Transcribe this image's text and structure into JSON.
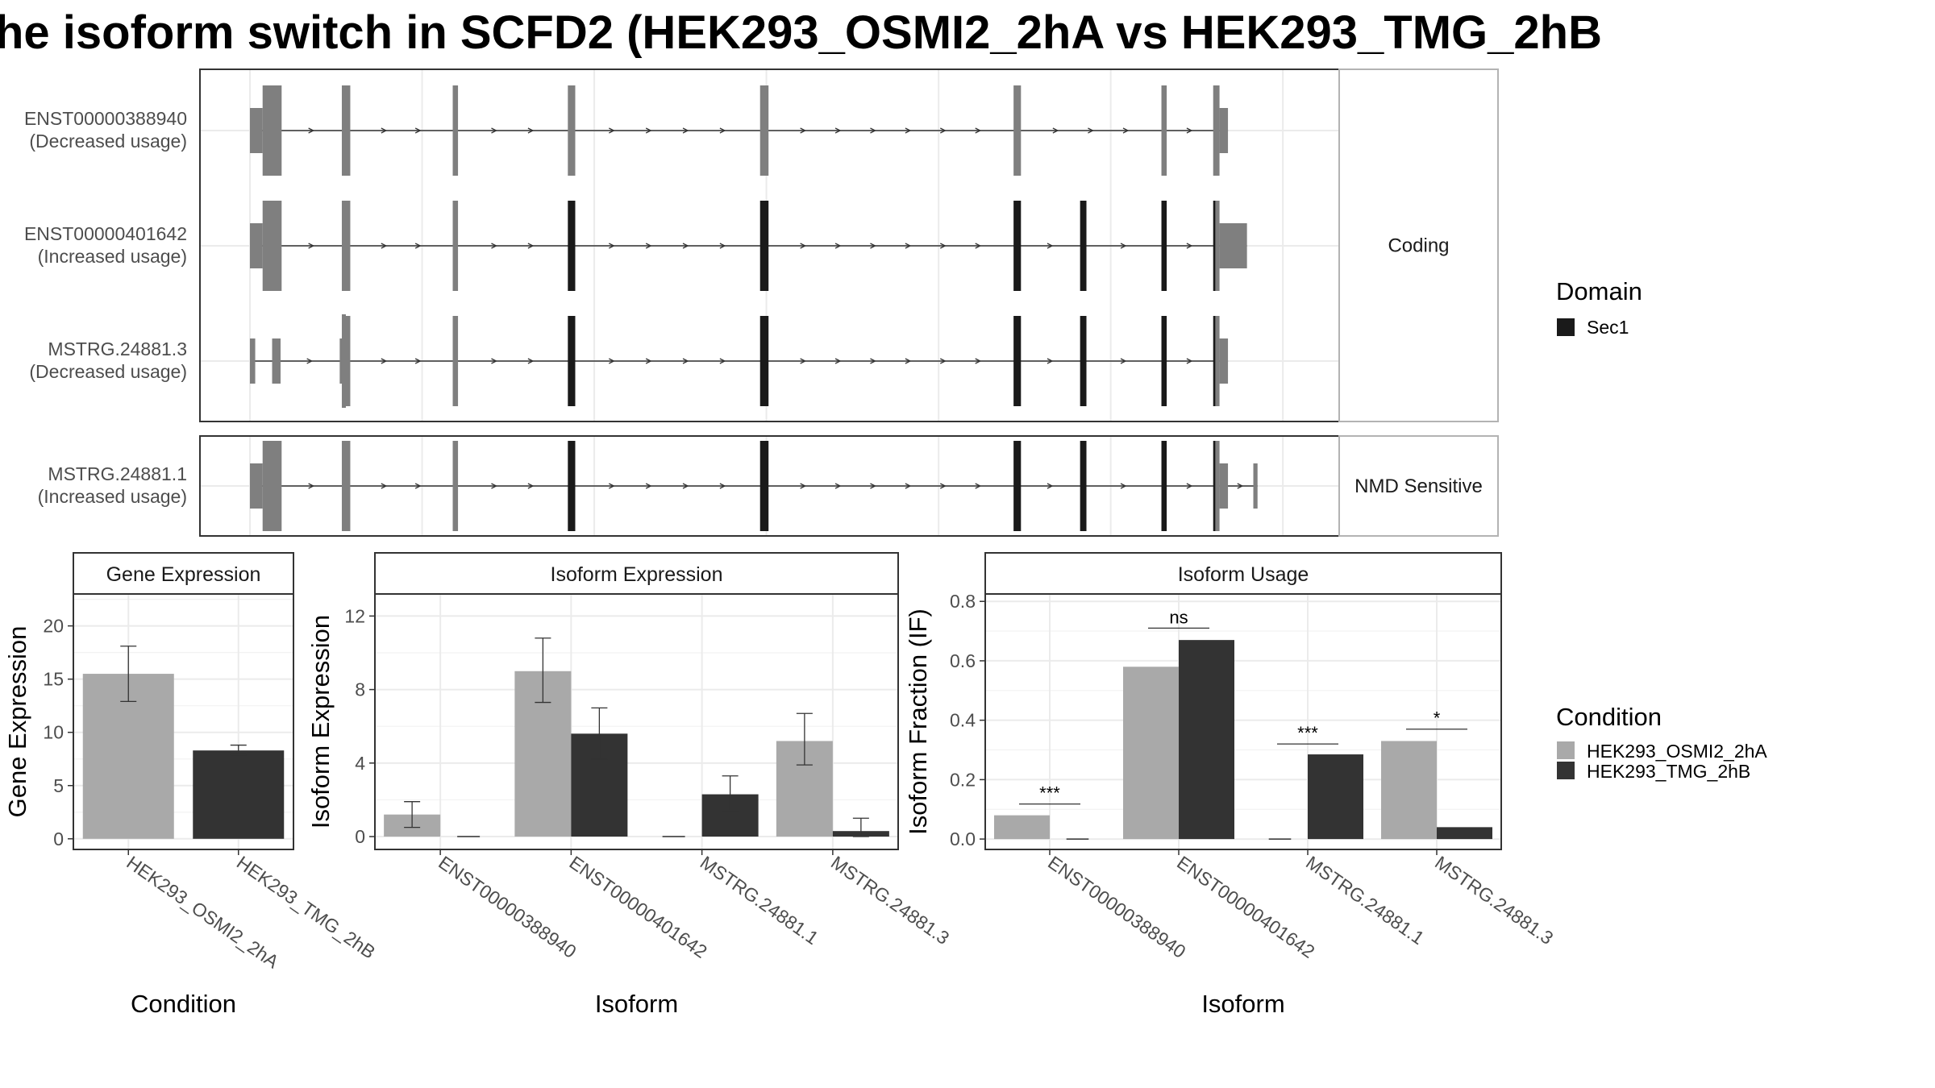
{
  "title": "he isoform switch in SCFD2 (HEK293_OSMI2_2hA vs HEK293_TMG_2hB",
  "colors": {
    "exon_plain": "#7f7f7f",
    "exon_domain": "#1a1a1a",
    "condition_a": "#a9a9a9",
    "condition_b": "#333333",
    "grid": "#ebebeb",
    "panel_border": "#333333",
    "strip_fill": "#ffffff"
  },
  "structure": {
    "facets": [
      {
        "label": "Coding",
        "transcripts": [
          0,
          1,
          2
        ]
      },
      {
        "label": "NMD Sensitive",
        "transcripts": [
          3
        ]
      }
    ],
    "legend": {
      "title": "Domain",
      "items": [
        {
          "label": "Sec1",
          "color": "#1a1a1a"
        }
      ]
    },
    "transcripts": [
      {
        "id": "ENST00000388940",
        "usage": "(Decreased usage)",
        "exons": [
          [
            0.0,
            0.012,
            "u"
          ],
          [
            0.012,
            0.03,
            "c"
          ],
          [
            0.087,
            0.095,
            "c"
          ],
          [
            0.192,
            0.197,
            "c"
          ],
          [
            0.301,
            0.308,
            "c"
          ],
          [
            0.483,
            0.491,
            "c"
          ],
          [
            0.723,
            0.73,
            "c"
          ],
          [
            0.863,
            0.868,
            "c"
          ],
          [
            0.912,
            0.918,
            "c"
          ],
          [
            0.918,
            0.926,
            "u"
          ]
        ]
      },
      {
        "id": "ENST00000401642",
        "usage": "(Increased usage)",
        "exons": [
          [
            0.0,
            0.012,
            "u"
          ],
          [
            0.012,
            0.03,
            "c"
          ],
          [
            0.087,
            0.095,
            "c"
          ],
          [
            0.192,
            0.197,
            "c"
          ],
          [
            0.301,
            0.308,
            "d"
          ],
          [
            0.483,
            0.491,
            "d"
          ],
          [
            0.723,
            0.73,
            "d"
          ],
          [
            0.786,
            0.792,
            "d"
          ],
          [
            0.863,
            0.868,
            "d"
          ],
          [
            0.912,
            0.914,
            "d"
          ],
          [
            0.914,
            0.918,
            "c"
          ],
          [
            0.918,
            0.944,
            "u"
          ]
        ]
      },
      {
        "id": "MSTRG.24881.3",
        "usage": "(Decreased usage)",
        "exons": [
          [
            0.0,
            0.005,
            "n"
          ],
          [
            0.021,
            0.029,
            "n"
          ],
          [
            0.085,
            0.09,
            "u"
          ],
          [
            0.09,
            0.095,
            "c"
          ],
          [
            0.192,
            0.197,
            "c"
          ],
          [
            0.301,
            0.308,
            "d"
          ],
          [
            0.483,
            0.491,
            "d"
          ],
          [
            0.723,
            0.73,
            "d"
          ],
          [
            0.786,
            0.792,
            "d"
          ],
          [
            0.863,
            0.868,
            "d"
          ],
          [
            0.912,
            0.914,
            "d"
          ],
          [
            0.914,
            0.918,
            "c"
          ],
          [
            0.918,
            0.926,
            "u"
          ]
        ]
      },
      {
        "id": "MSTRG.24881.1",
        "usage": "(Increased usage)",
        "exons": [
          [
            0.0,
            0.012,
            "u"
          ],
          [
            0.012,
            0.03,
            "c"
          ],
          [
            0.087,
            0.095,
            "c"
          ],
          [
            0.192,
            0.197,
            "c"
          ],
          [
            0.301,
            0.308,
            "d"
          ],
          [
            0.483,
            0.491,
            "d"
          ],
          [
            0.723,
            0.73,
            "d"
          ],
          [
            0.786,
            0.792,
            "d"
          ],
          [
            0.863,
            0.868,
            "d"
          ],
          [
            0.912,
            0.914,
            "d"
          ],
          [
            0.914,
            0.918,
            "c"
          ],
          [
            0.918,
            0.926,
            "u"
          ],
          [
            0.95,
            0.954,
            "u"
          ]
        ]
      }
    ]
  },
  "condition_legend": {
    "title": "Condition",
    "items": [
      {
        "label": "HEK293_OSMI2_2hA",
        "color": "#a9a9a9"
      },
      {
        "label": "HEK293_TMG_2hB",
        "color": "#333333"
      }
    ]
  },
  "chart_data": [
    {
      "type": "bar",
      "strip": "Gene Expression",
      "xlabel": "Condition",
      "ylabel": "Gene Expression",
      "categories": [
        "HEK293_OSMI2_2hA",
        "HEK293_TMG_2hB"
      ],
      "values": [
        15.5,
        8.3
      ],
      "errors": [
        [
          12.9,
          18.1
        ],
        [
          7.9,
          8.8
        ]
      ],
      "ylim": [
        -1,
        23
      ],
      "yticks": [
        0,
        5,
        10,
        15,
        20
      ]
    },
    {
      "type": "bar",
      "strip": "Isoform Expression",
      "xlabel": "Isoform",
      "ylabel": "Isoform Expression",
      "categories": [
        "ENST00000388940",
        "ENST00000401642",
        "MSTRG.24881.1",
        "MSTRG.24881.3"
      ],
      "series": [
        {
          "name": "HEK293_OSMI2_2hA",
          "values": [
            1.2,
            9.0,
            0.0,
            5.2
          ],
          "errors": [
            [
              0.5,
              1.9
            ],
            [
              7.3,
              10.8
            ],
            [
              0.0,
              0.0
            ],
            [
              3.9,
              6.7
            ]
          ]
        },
        {
          "name": "HEK293_TMG_2hB",
          "values": [
            0.0,
            5.6,
            2.3,
            0.3
          ],
          "errors": [
            [
              0.0,
              0.0
            ],
            [
              4.2,
              7.0
            ],
            [
              1.4,
              3.3
            ],
            [
              0.0,
              1.0
            ]
          ]
        }
      ],
      "ylim": [
        -0.7,
        13.2
      ],
      "yticks": [
        0,
        4,
        8,
        12
      ]
    },
    {
      "type": "bar",
      "strip": "Isoform Usage",
      "xlabel": "Isoform",
      "ylabel": "Isoform Fraction (IF)",
      "categories": [
        "ENST00000388940",
        "ENST00000401642",
        "MSTRG.24881.1",
        "MSTRG.24881.3"
      ],
      "series": [
        {
          "name": "HEK293_OSMI2_2hA",
          "values": [
            0.08,
            0.58,
            0.0,
            0.33
          ]
        },
        {
          "name": "HEK293_TMG_2hB",
          "values": [
            0.0,
            0.67,
            0.285,
            0.04
          ]
        }
      ],
      "significance": [
        {
          "label": "***",
          "y": 0.118
        },
        {
          "label": "ns",
          "y": 0.71
        },
        {
          "label": "***",
          "y": 0.32
        },
        {
          "label": "*",
          "y": 0.37
        }
      ],
      "ylim": [
        -0.035,
        0.825
      ],
      "yticks": [
        0.0,
        0.2,
        0.4,
        0.6,
        0.8
      ],
      "ytick_labels": [
        "0.0",
        "0.2",
        "0.4",
        "0.6",
        "0.8"
      ]
    }
  ]
}
